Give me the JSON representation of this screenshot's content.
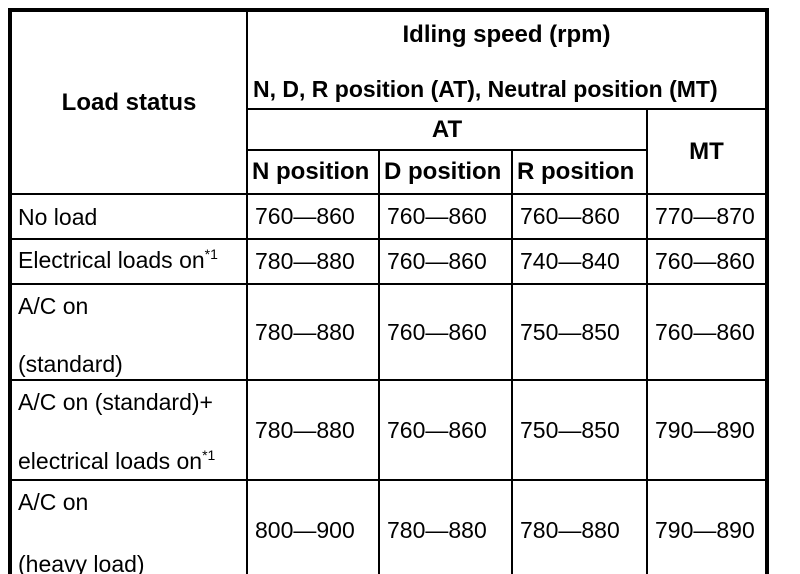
{
  "table": {
    "load_status_header": "Load status",
    "idling_header_line1": "Idling speed (rpm)",
    "idling_header_line2": "N, D, R position (AT), Neutral position (MT)",
    "at_header": "AT",
    "mt_header": "MT",
    "sub_headers": {
      "n": "N position",
      "d": "D position",
      "r": "R position"
    },
    "rows": [
      {
        "load_lines": [
          {
            "text": "No load",
            "sup": ""
          }
        ],
        "values": [
          "760—860",
          "760—860",
          "760—860",
          "770—870"
        ]
      },
      {
        "load_lines": [
          {
            "text": "Electrical loads on",
            "sup": "*1"
          }
        ],
        "values": [
          "780—880",
          "760—860",
          "740—840",
          "760—860"
        ]
      },
      {
        "load_lines": [
          {
            "text": "A/C on",
            "sup": ""
          },
          {
            "text": "(standard)",
            "sup": ""
          }
        ],
        "values": [
          "780—880",
          "760—860",
          "750—850",
          "760—860"
        ]
      },
      {
        "load_lines": [
          {
            "text": "A/C on (standard)+",
            "sup": ""
          },
          {
            "text": "electrical loads on",
            "sup": "*1"
          }
        ],
        "values": [
          "780—880",
          "760—860",
          "750—850",
          "790—890"
        ]
      },
      {
        "load_lines": [
          {
            "text": "A/C on",
            "sup": ""
          },
          {
            "text": "(heavy load)",
            "sup": ""
          }
        ],
        "values": [
          "800—900",
          "780—880",
          "780—880",
          "790—890"
        ]
      }
    ]
  }
}
